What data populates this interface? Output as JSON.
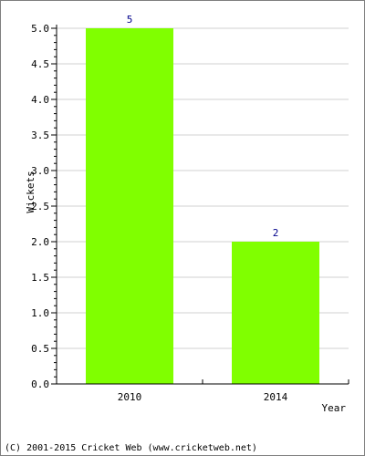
{
  "chart_data": {
    "type": "bar",
    "categories": [
      "2010",
      "2014"
    ],
    "values": [
      5,
      2
    ],
    "data_labels": [
      "5",
      "2"
    ],
    "xlabel": "Year",
    "ylabel": "Wickets",
    "ylim": [
      0,
      5
    ],
    "yticks": [
      "0.0",
      "0.5",
      "1.0",
      "1.5",
      "2.0",
      "2.5",
      "3.0",
      "3.5",
      "4.0",
      "4.5",
      "5.0"
    ],
    "grid": true,
    "colors": {
      "bar": "#80ff00",
      "label": "#00008b",
      "grid": "#d0d0d0",
      "axis": "#000000"
    }
  },
  "footer": {
    "copyright": "(C) 2001-2015 Cricket Web (www.cricketweb.net)"
  }
}
